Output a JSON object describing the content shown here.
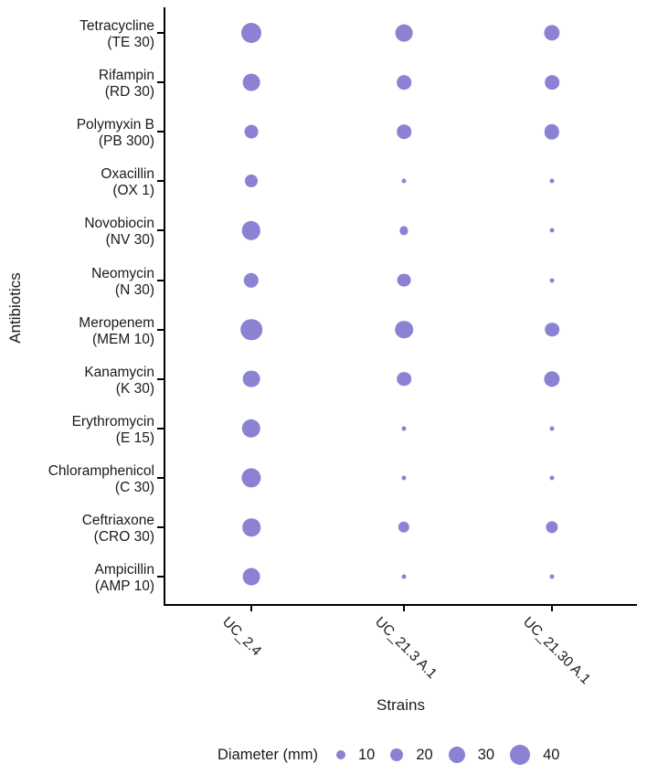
{
  "figure": {
    "ylabel": "Antibiotics",
    "xlabel": "Strains",
    "bubble_color": "#8C82D4",
    "axis_color": "#000000",
    "text_color": "#1A1A1A",
    "background": "#FFFFFF"
  },
  "legend": {
    "title": "Diameter (mm)",
    "sizes": [
      10,
      20,
      30,
      40
    ]
  },
  "chart_data": {
    "type": "scatter",
    "subtype": "bubble",
    "title": "",
    "xlabel": "Strains",
    "ylabel": "Antibiotics",
    "size_legend_title": "Diameter (mm)",
    "size_legend_values": [
      10,
      20,
      30,
      40
    ],
    "size_unit": "mm",
    "grid": false,
    "x_categories": [
      "UC_2.4",
      "UC_21.3 A.1",
      "UC_21.30 A.1"
    ],
    "y_categories": [
      {
        "name": "Tetracycline",
        "code": "(TE 30)"
      },
      {
        "name": "Rifampin",
        "code": "(RD 30)"
      },
      {
        "name": "Polymyxin B",
        "code": "(PB 300)"
      },
      {
        "name": "Oxacillin",
        "code": "(OX 1)"
      },
      {
        "name": "Novobiocin",
        "code": "(NV 30)"
      },
      {
        "name": "Neomycin",
        "code": "(N 30)"
      },
      {
        "name": "Meropenem",
        "code": "(MEM 10)"
      },
      {
        "name": "Kanamycin",
        "code": "(K 30)"
      },
      {
        "name": "Erythromycin",
        "code": "(E 15)"
      },
      {
        "name": "Chloramphenicol",
        "code": "(C 30)"
      },
      {
        "name": "Ceftriaxone",
        "code": "(CRO 30)"
      },
      {
        "name": "Ampicillin",
        "code": "(AMP 10)"
      }
    ],
    "series": [
      {
        "name": "UC_2.4",
        "diameters_mm": [
          40,
          32,
          22,
          20,
          36,
          26,
          44,
          32,
          36,
          38,
          34,
          32
        ]
      },
      {
        "name": "UC_21.3 A.1",
        "diameters_mm": [
          32,
          24,
          24,
          6,
          8,
          22,
          34,
          24,
          6,
          6,
          16,
          6
        ]
      },
      {
        "name": "UC_21.30 A.1",
        "diameters_mm": [
          28,
          24,
          26,
          6,
          6,
          6,
          24,
          28,
          6,
          6,
          18,
          6
        ]
      }
    ]
  }
}
